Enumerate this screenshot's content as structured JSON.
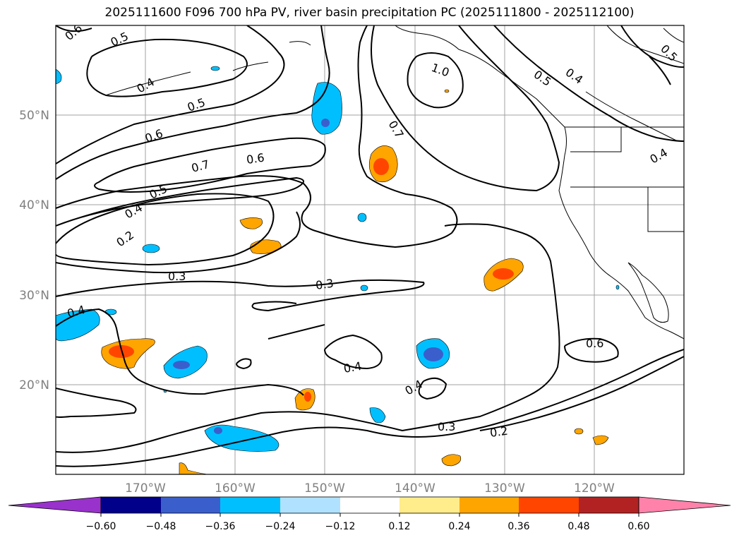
{
  "title": "2025111600 F096 700 hPa PV, river basin precipitation PC (2025111800 - 2025112100)",
  "map": {
    "lon_range": [
      -180,
      -110
    ],
    "lat_range": [
      10,
      60
    ],
    "lat_ticks": [
      {
        "value": 50,
        "label": "50°N"
      },
      {
        "value": 40,
        "label": "40°N"
      },
      {
        "value": 30,
        "label": "30°N"
      },
      {
        "value": 20,
        "label": "20°N"
      }
    ],
    "lon_ticks": [
      {
        "value": -170,
        "label": "170°W"
      },
      {
        "value": -160,
        "label": "160°W"
      },
      {
        "value": -150,
        "label": "150°W"
      },
      {
        "value": -140,
        "label": "140°W"
      },
      {
        "value": -130,
        "label": "130°W"
      },
      {
        "value": -120,
        "label": "120°W"
      }
    ],
    "grid": true,
    "contour_labels": [
      "0.6",
      "0.5",
      "0.4",
      "0.5",
      "0.6",
      "0.7",
      "0.6",
      "0.5",
      "0.4",
      "0.2",
      "0.3",
      "1.0",
      "0.7",
      "0.5",
      "0.4",
      "0.5",
      "0.4",
      "0.3",
      "0.4",
      "0.4",
      "0.4",
      "0.3",
      "0.2",
      "0.6"
    ]
  },
  "colorbar": {
    "colors": [
      "#9932cc",
      "#00008b",
      "#3a5fcd",
      "#00bfff",
      "#b0e2ff",
      "#ffffff",
      "#ffec8b",
      "#ffa500",
      "#ff4500",
      "#b22222",
      "#ff82ab"
    ],
    "tick_labels": [
      "−0.60",
      "−0.48",
      "−0.36",
      "−0.24",
      "−0.12",
      "0.12",
      "0.24",
      "0.36",
      "0.48",
      "0.60"
    ]
  }
}
